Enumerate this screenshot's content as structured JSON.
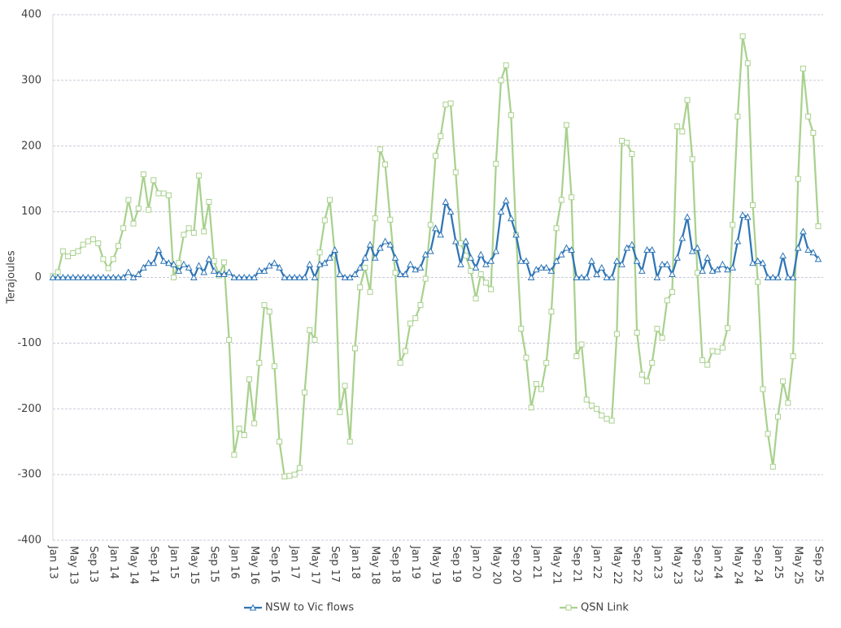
{
  "chart_data": {
    "type": "line",
    "y_label": "Terajoules",
    "ylim": [
      -400,
      400
    ],
    "yticks": [
      -400,
      -300,
      -200,
      -100,
      0,
      100,
      200,
      300,
      400
    ],
    "grid": true,
    "legend": "bottom",
    "categories": [
      "Jan 13",
      null,
      null,
      null,
      "May 13",
      null,
      null,
      null,
      "Sep 13",
      null,
      null,
      null,
      "Jan 14",
      null,
      null,
      null,
      "May 14",
      null,
      null,
      null,
      "Sep 14",
      null,
      null,
      null,
      "Jan 15",
      null,
      null,
      null,
      "May 15",
      null,
      null,
      null,
      "Sep 15",
      null,
      null,
      null,
      "Jan 16",
      null,
      null,
      null,
      "May 16",
      null,
      null,
      null,
      "Sep 16",
      null,
      null,
      null,
      "Jan 17",
      null,
      null,
      null,
      "May 17",
      null,
      null,
      null,
      "Sep 17",
      null,
      null,
      null,
      "Jan 18",
      null,
      null,
      null,
      "May 18",
      null,
      null,
      null,
      "Sep 18",
      null,
      null,
      null,
      "Jan 19",
      null,
      null,
      null,
      "May 19",
      null,
      null,
      null,
      "Sep 19",
      null,
      null,
      null,
      "Jan 20",
      null,
      null,
      null,
      "May 20",
      null,
      null,
      null,
      "Sep 20",
      null,
      null,
      null,
      "Jan 21",
      null,
      null,
      null,
      "May 21",
      null,
      null,
      null,
      "Sep 21",
      null,
      null,
      null,
      "Jan 22",
      null,
      null,
      null,
      "May 22",
      null,
      null,
      null,
      "Sep 22",
      null,
      null,
      null,
      "Jan 23",
      null,
      null,
      null,
      "May 23",
      null,
      null,
      null,
      "Sep 23",
      null,
      null,
      null,
      "Jan 24",
      null,
      null,
      null,
      "May 24",
      null,
      null,
      null,
      "Sep 24",
      null,
      null,
      null,
      "Jan 25",
      null,
      null,
      null,
      "May 25",
      null,
      null,
      null,
      "Sep 25"
    ],
    "series": [
      {
        "name": "NSW to Vic flows",
        "color": "#2e75b6",
        "marker": "triangle",
        "values": [
          0,
          0,
          0,
          0,
          0,
          0,
          0,
          0,
          0,
          0,
          0,
          0,
          0,
          0,
          0,
          8,
          0,
          5,
          15,
          22,
          22,
          42,
          25,
          22,
          20,
          10,
          20,
          15,
          0,
          18,
          8,
          28,
          10,
          5,
          5,
          8,
          0,
          0,
          0,
          0,
          0,
          10,
          10,
          18,
          22,
          15,
          0,
          0,
          0,
          0,
          0,
          20,
          0,
          20,
          22,
          30,
          42,
          5,
          0,
          0,
          5,
          15,
          30,
          50,
          30,
          45,
          55,
          50,
          30,
          5,
          5,
          20,
          12,
          15,
          35,
          40,
          75,
          65,
          115,
          100,
          55,
          20,
          55,
          30,
          15,
          35,
          20,
          25,
          40,
          100,
          117,
          90,
          65,
          25,
          25,
          0,
          12,
          15,
          15,
          10,
          25,
          35,
          45,
          42,
          0,
          0,
          0,
          25,
          5,
          15,
          0,
          0,
          25,
          20,
          45,
          50,
          25,
          10,
          42,
          42,
          0,
          20,
          20,
          5,
          30,
          60,
          92,
          40,
          45,
          10,
          30,
          10,
          12,
          20,
          12,
          15,
          55,
          95,
          92,
          22,
          25,
          22,
          0,
          0,
          0,
          33,
          0,
          0,
          45,
          70,
          42,
          38,
          28
        ]
      },
      {
        "name": "QSN Link",
        "color": "#a9d18e",
        "marker": "square",
        "values": [
          2,
          8,
          40,
          32,
          37,
          40,
          50,
          55,
          58,
          52,
          28,
          14,
          28,
          48,
          75,
          118,
          82,
          105,
          157,
          103,
          148,
          128,
          128,
          125,
          0,
          22,
          65,
          75,
          68,
          155,
          70,
          115,
          25,
          3,
          23,
          -95,
          -270,
          -230,
          -240,
          -155,
          -222,
          -130,
          -42,
          -52,
          -135,
          -250,
          -303,
          -302,
          -300,
          -290,
          -175,
          -80,
          -95,
          38,
          87,
          118,
          35,
          -205,
          -165,
          -250,
          -108,
          -15,
          15,
          -22,
          90,
          195,
          172,
          88,
          7,
          -130,
          -112,
          -70,
          -62,
          -42,
          -2,
          80,
          185,
          215,
          263,
          265,
          160,
          52,
          33,
          10,
          -32,
          5,
          -8,
          -18,
          173,
          300,
          323,
          247,
          65,
          -78,
          -122,
          -198,
          -162,
          -170,
          -130,
          -52,
          75,
          118,
          232,
          122,
          -120,
          -102,
          -186,
          -195,
          -200,
          -210,
          -215,
          -218,
          -86,
          208,
          205,
          188,
          -84,
          -148,
          -158,
          -130,
          -78,
          -92,
          -35,
          -22,
          230,
          222,
          270,
          180,
          7,
          -126,
          -133,
          -112,
          -113,
          -107,
          -77,
          80,
          245,
          367,
          326,
          110,
          -7,
          -170,
          -238,
          -288,
          -212,
          -158,
          -191,
          -120,
          150,
          318,
          245,
          220,
          78
        ]
      }
    ]
  }
}
